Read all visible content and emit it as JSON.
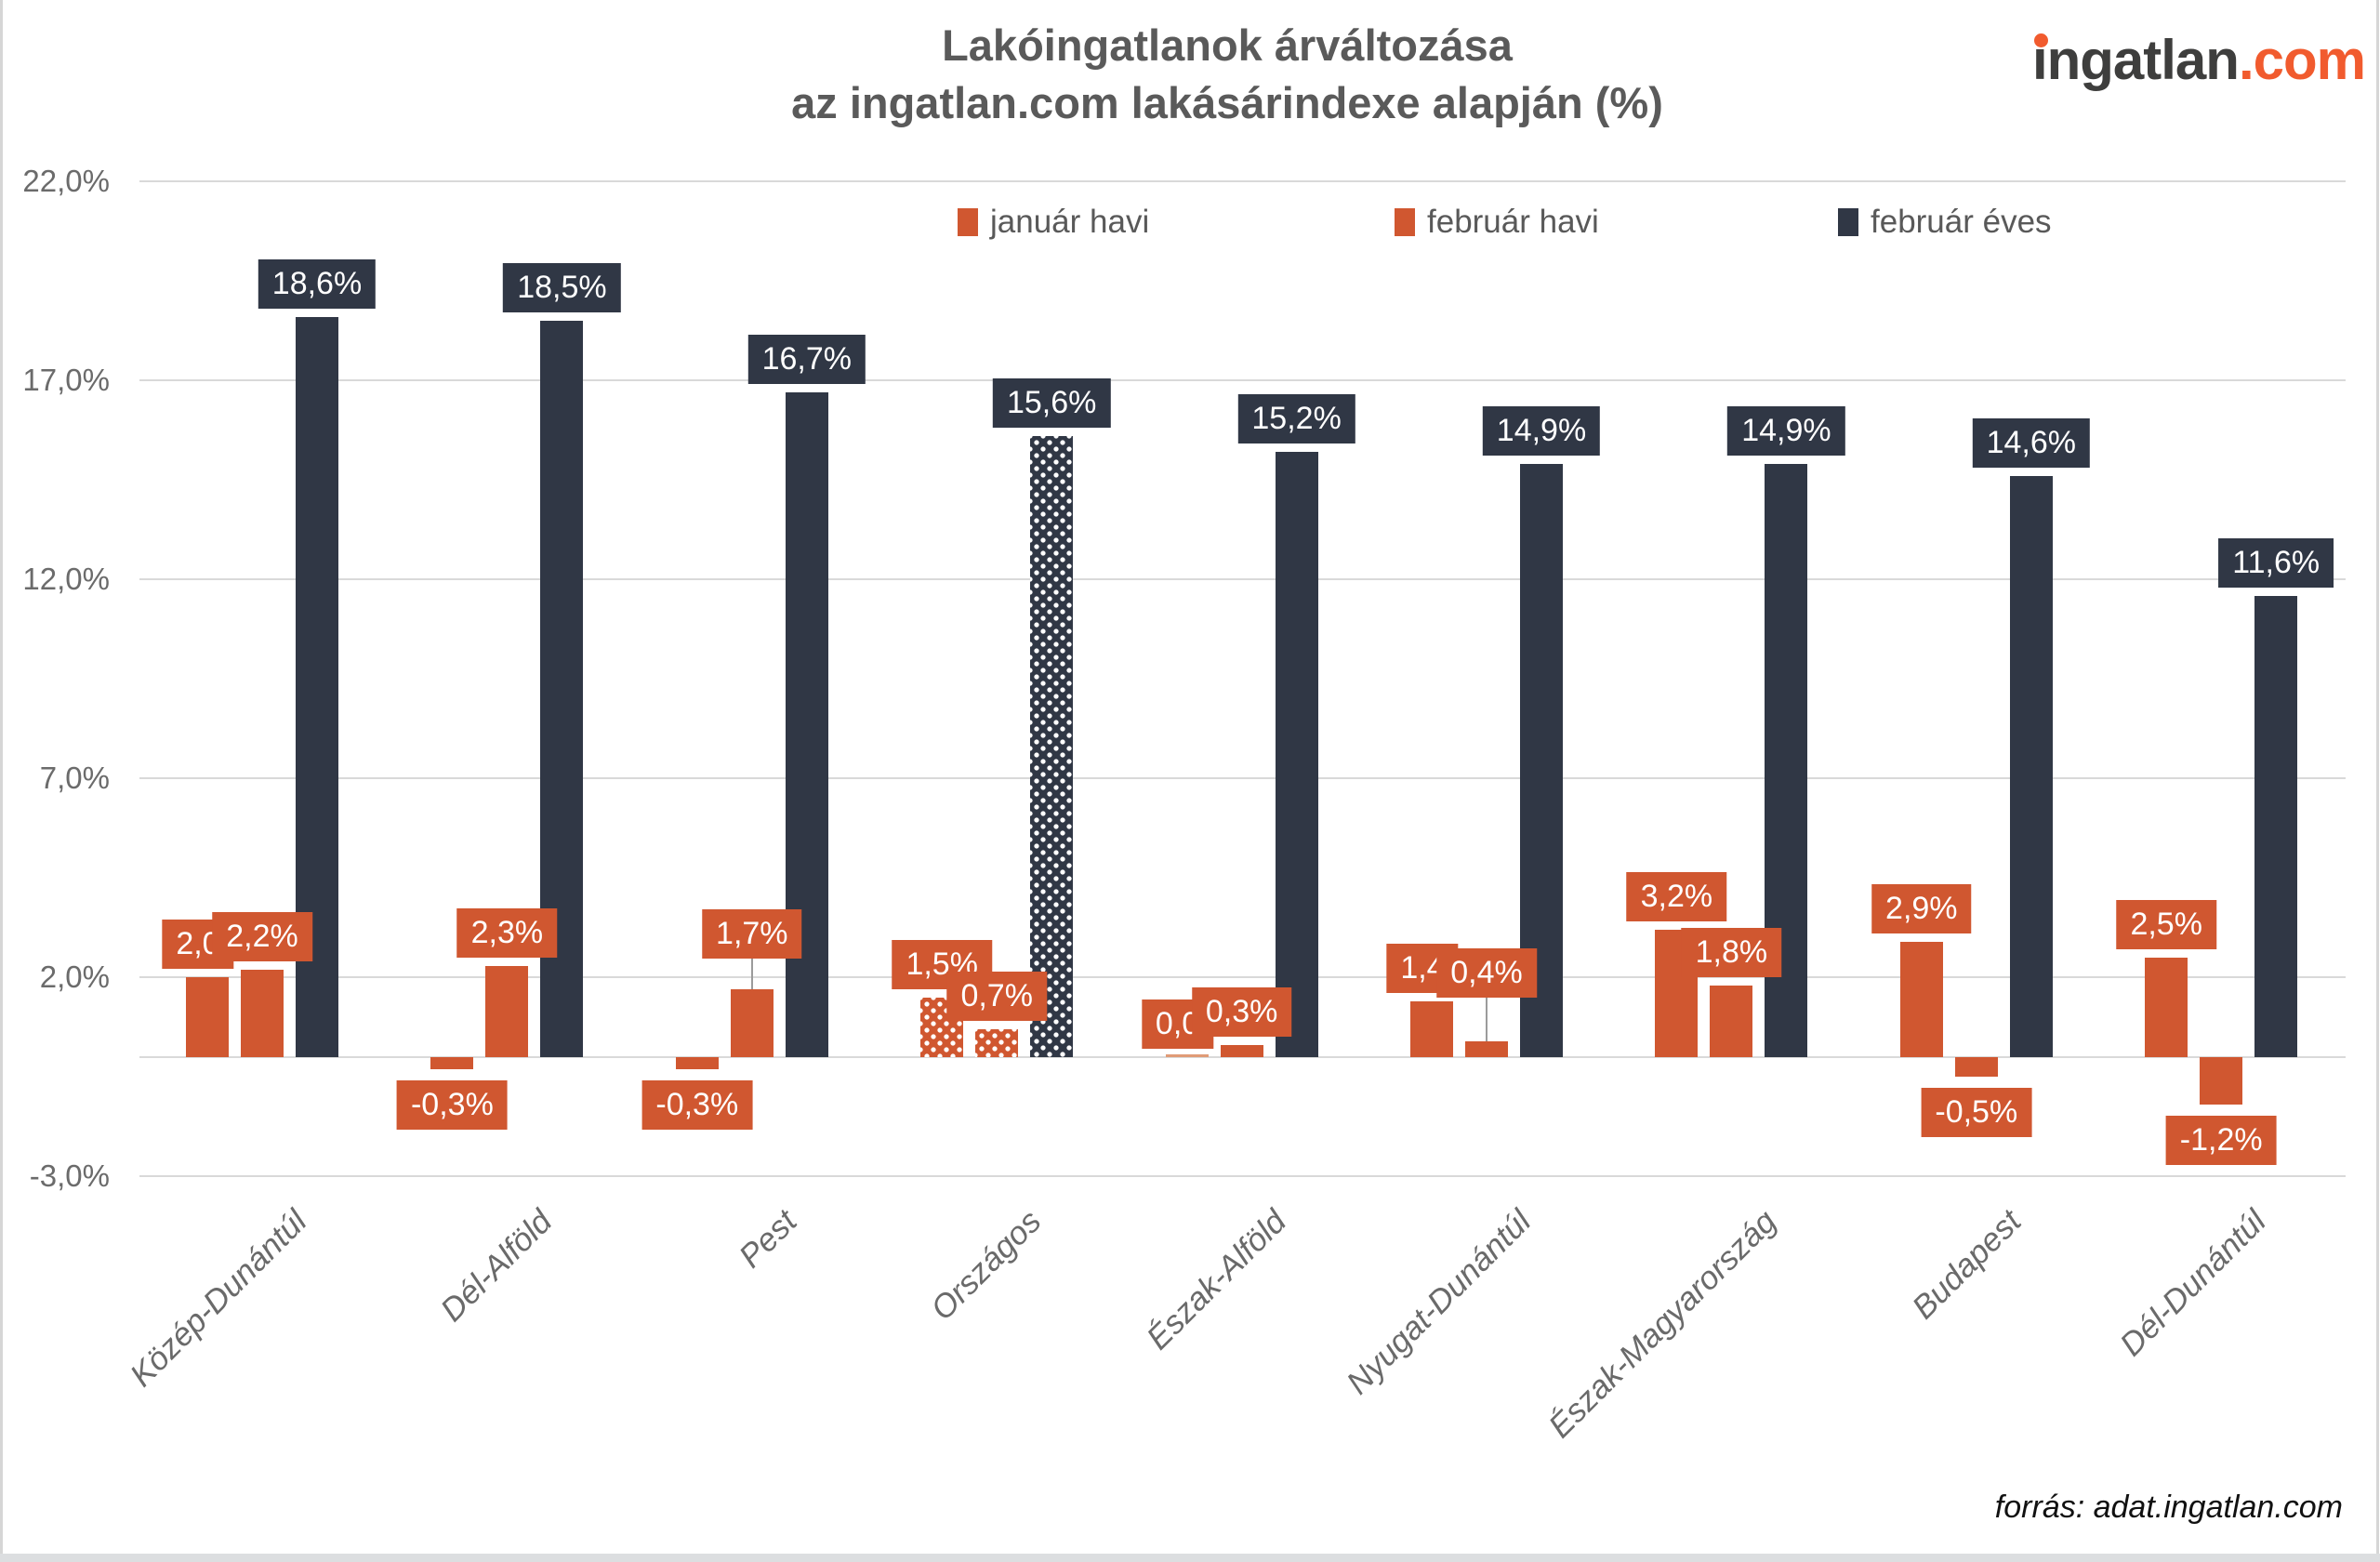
{
  "page": {
    "source_note": "forrás: adat.ingatlan.com"
  },
  "logo": {
    "text_dark_first": "i",
    "text_dark_rest": "ngatlan",
    "text_accent": ".com"
  },
  "chart_data": {
    "type": "bar",
    "title": "Lakóingatlanok árváltozása",
    "subtitle": "az ingatlan.com lakásárindexe alapján (%)",
    "legend_position": "top",
    "grid": true,
    "ylabel": "",
    "xlabel": "",
    "ylim": [
      -3,
      22
    ],
    "y_ticks": [
      "22,0%",
      "17,0%",
      "12,0%",
      "7,0%",
      "2,0%",
      "-3,0%"
    ],
    "y_tick_values": [
      22,
      17,
      12,
      7,
      2,
      -3
    ],
    "categories": [
      "Közép-Dunántúl",
      "Dél-Alföld",
      "Pest",
      "Országos",
      "Észak-Alföld",
      "Nyugat-Dunántúl",
      "Észak-Magyarország",
      "Budapest",
      "Dél-Dunántúl"
    ],
    "pattern_category_index": 3,
    "pattern_category_note": "Országos bars drawn with white dot pattern fill",
    "series": [
      {
        "name": "január havi",
        "color": "#D05730",
        "values": [
          2.0,
          -0.3,
          -0.3,
          1.5,
          0.0,
          1.4,
          3.2,
          2.9,
          2.5
        ],
        "labels": [
          "2,0",
          "-0,3%",
          "-0,3%",
          "1,5%",
          "0,0",
          "1,4",
          "3,2%",
          "2,9%",
          "2,5%"
        ]
      },
      {
        "name": "február havi",
        "color": "#D05730",
        "values": [
          2.2,
          2.3,
          1.7,
          0.7,
          0.3,
          0.4,
          1.8,
          -0.5,
          -1.2
        ],
        "labels": [
          "2,2%",
          "2,3%",
          "1,7%",
          "0,7%",
          "0,3%",
          "0,4%",
          "1,8%",
          "-0,5%",
          "-1,2%"
        ]
      },
      {
        "name": "február éves",
        "color": "#303745",
        "values": [
          18.6,
          18.5,
          16.7,
          15.6,
          15.2,
          14.9,
          14.9,
          14.6,
          11.6
        ],
        "labels": [
          "18,6%",
          "18,5%",
          "16,7%",
          "15,6%",
          "15,2%",
          "14,9%",
          "14,9%",
          "14,6%",
          "11,6%"
        ]
      }
    ],
    "colors": {
      "orange": "#D05730",
      "navy": "#303745",
      "zero_value_bar": "#E09B77",
      "gridline": "#D9D9D9"
    }
  }
}
